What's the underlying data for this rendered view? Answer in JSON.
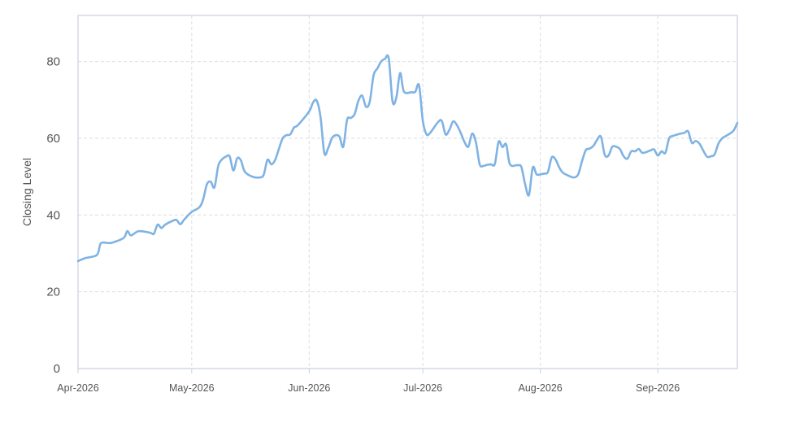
{
  "chart_data": {
    "type": "line",
    "title": "",
    "xlabel": "",
    "ylabel": "Closing Level",
    "ylim": [
      0,
      92
    ],
    "xlim": [
      "2026-04-01",
      "2026-09-22"
    ],
    "yticks": [
      0,
      20,
      40,
      60,
      80
    ],
    "xticks": [
      {
        "date": "2026-04-01",
        "label": "Apr-2026"
      },
      {
        "date": "2026-05-01",
        "label": "May-2026"
      },
      {
        "date": "2026-06-01",
        "label": "Jun-2026"
      },
      {
        "date": "2026-07-01",
        "label": "Jul-2026"
      },
      {
        "date": "2026-08-01",
        "label": "Aug-2026"
      },
      {
        "date": "2026-09-01",
        "label": "Sep-2026"
      }
    ],
    "grid": true,
    "color": "#7fb3e3",
    "series": [
      {
        "points": [
          [
            "2026-04-01",
            28.0
          ],
          [
            "2026-04-03",
            28.8
          ],
          [
            "2026-04-06",
            29.6
          ],
          [
            "2026-04-07",
            32.6
          ],
          [
            "2026-04-09",
            32.7
          ],
          [
            "2026-04-10",
            32.8
          ],
          [
            "2026-04-13",
            34.0
          ],
          [
            "2026-04-14",
            35.8
          ],
          [
            "2026-04-15",
            34.7
          ],
          [
            "2026-04-17",
            35.8
          ],
          [
            "2026-04-20",
            35.4
          ],
          [
            "2026-04-21",
            35.1
          ],
          [
            "2026-04-22",
            37.5
          ],
          [
            "2026-04-23",
            36.6
          ],
          [
            "2026-04-24",
            37.5
          ],
          [
            "2026-04-26",
            38.5
          ],
          [
            "2026-04-27",
            38.7
          ],
          [
            "2026-04-28",
            37.6
          ],
          [
            "2026-04-29",
            38.8
          ],
          [
            "2026-05-01",
            40.8
          ],
          [
            "2026-05-03",
            42.0
          ],
          [
            "2026-05-04",
            44.0
          ],
          [
            "2026-05-05",
            48.0
          ],
          [
            "2026-05-06",
            48.7
          ],
          [
            "2026-05-07",
            47.2
          ],
          [
            "2026-05-08",
            52.8
          ],
          [
            "2026-05-09",
            54.5
          ],
          [
            "2026-05-10",
            55.2
          ],
          [
            "2026-05-11",
            55.3
          ],
          [
            "2026-05-12",
            51.6
          ],
          [
            "2026-05-13",
            54.8
          ],
          [
            "2026-05-14",
            54.2
          ],
          [
            "2026-05-15",
            51.3
          ],
          [
            "2026-05-17",
            50.0
          ],
          [
            "2026-05-19",
            49.8
          ],
          [
            "2026-05-20",
            50.5
          ],
          [
            "2026-05-21",
            54.4
          ],
          [
            "2026-05-22",
            53.2
          ],
          [
            "2026-05-23",
            54.3
          ],
          [
            "2026-05-24",
            57.2
          ],
          [
            "2026-05-25",
            60.0
          ],
          [
            "2026-05-26",
            60.8
          ],
          [
            "2026-05-27",
            61.0
          ],
          [
            "2026-05-28",
            62.8
          ],
          [
            "2026-05-29",
            63.4
          ],
          [
            "2026-06-01",
            67.0
          ],
          [
            "2026-06-02",
            69.3
          ],
          [
            "2026-06-03",
            69.8
          ],
          [
            "2026-06-04",
            65.5
          ],
          [
            "2026-06-05",
            56.1
          ],
          [
            "2026-06-06",
            57.4
          ],
          [
            "2026-06-07",
            60.0
          ],
          [
            "2026-06-08",
            60.8
          ],
          [
            "2026-06-09",
            60.4
          ],
          [
            "2026-06-10",
            57.8
          ],
          [
            "2026-06-11",
            64.8
          ],
          [
            "2026-06-12",
            65.3
          ],
          [
            "2026-06-13",
            66.3
          ],
          [
            "2026-06-14",
            69.8
          ],
          [
            "2026-06-15",
            71.1
          ],
          [
            "2026-06-16",
            68.2
          ],
          [
            "2026-06-17",
            69.6
          ],
          [
            "2026-06-18",
            76.4
          ],
          [
            "2026-06-19",
            78.2
          ],
          [
            "2026-06-20",
            80.0
          ],
          [
            "2026-06-21",
            80.7
          ],
          [
            "2026-06-22",
            80.8
          ],
          [
            "2026-06-23",
            69.6
          ],
          [
            "2026-06-24",
            70.6
          ],
          [
            "2026-06-25",
            77.0
          ],
          [
            "2026-06-26",
            72.2
          ],
          [
            "2026-06-28",
            72.0
          ],
          [
            "2026-06-29",
            72.1
          ],
          [
            "2026-06-30",
            73.8
          ],
          [
            "2026-07-01",
            64.5
          ],
          [
            "2026-07-02",
            61.0
          ],
          [
            "2026-07-03",
            61.5
          ],
          [
            "2026-07-05",
            64.2
          ],
          [
            "2026-07-06",
            64.5
          ],
          [
            "2026-07-07",
            61.0
          ],
          [
            "2026-07-08",
            62.2
          ],
          [
            "2026-07-09",
            64.4
          ],
          [
            "2026-07-10",
            63.4
          ],
          [
            "2026-07-11",
            61.4
          ],
          [
            "2026-07-12",
            59.0
          ],
          [
            "2026-07-13",
            57.8
          ],
          [
            "2026-07-14",
            61.2
          ],
          [
            "2026-07-15",
            59.0
          ],
          [
            "2026-07-16",
            53.2
          ],
          [
            "2026-07-17",
            52.8
          ],
          [
            "2026-07-18",
            53.1
          ],
          [
            "2026-07-19",
            53.2
          ],
          [
            "2026-07-20",
            53.3
          ],
          [
            "2026-07-21",
            59.1
          ],
          [
            "2026-07-22",
            57.7
          ],
          [
            "2026-07-23",
            58.4
          ],
          [
            "2026-07-24",
            53.2
          ],
          [
            "2026-07-26",
            53.0
          ],
          [
            "2026-07-27",
            52.5
          ],
          [
            "2026-07-28",
            48.0
          ],
          [
            "2026-07-29",
            45.2
          ],
          [
            "2026-07-30",
            52.4
          ],
          [
            "2026-07-31",
            50.6
          ],
          [
            "2026-08-01",
            50.6
          ],
          [
            "2026-08-02",
            50.8
          ],
          [
            "2026-08-03",
            51.2
          ],
          [
            "2026-08-04",
            55.0
          ],
          [
            "2026-08-05",
            54.5
          ],
          [
            "2026-08-06",
            52.4
          ],
          [
            "2026-08-07",
            51.0
          ],
          [
            "2026-08-09",
            50.0
          ],
          [
            "2026-08-10",
            49.8
          ],
          [
            "2026-08-11",
            50.6
          ],
          [
            "2026-08-12",
            54.0
          ],
          [
            "2026-08-13",
            56.9
          ],
          [
            "2026-08-14",
            57.3
          ],
          [
            "2026-08-15",
            58.0
          ],
          [
            "2026-08-16",
            59.6
          ],
          [
            "2026-08-17",
            60.4
          ],
          [
            "2026-08-18",
            55.7
          ],
          [
            "2026-08-19",
            55.5
          ],
          [
            "2026-08-20",
            57.8
          ],
          [
            "2026-08-21",
            57.8
          ],
          [
            "2026-08-22",
            57.2
          ],
          [
            "2026-08-23",
            55.3
          ],
          [
            "2026-08-24",
            54.7
          ],
          [
            "2026-08-25",
            56.6
          ],
          [
            "2026-08-26",
            56.6
          ],
          [
            "2026-08-27",
            57.2
          ],
          [
            "2026-08-28",
            56.2
          ],
          [
            "2026-08-30",
            56.8
          ],
          [
            "2026-08-31",
            57.1
          ],
          [
            "2026-09-01",
            55.5
          ],
          [
            "2026-09-02",
            56.6
          ],
          [
            "2026-09-03",
            56.2
          ],
          [
            "2026-09-04",
            60.0
          ],
          [
            "2026-09-05",
            60.6
          ],
          [
            "2026-09-07",
            61.2
          ],
          [
            "2026-09-08",
            61.4
          ],
          [
            "2026-09-09",
            61.8
          ],
          [
            "2026-09-10",
            58.8
          ],
          [
            "2026-09-11",
            59.3
          ],
          [
            "2026-09-12",
            58.6
          ],
          [
            "2026-09-13",
            56.8
          ],
          [
            "2026-09-14",
            55.2
          ],
          [
            "2026-09-15",
            55.3
          ],
          [
            "2026-09-16",
            55.8
          ],
          [
            "2026-09-17",
            58.6
          ],
          [
            "2026-09-18",
            60.0
          ],
          [
            "2026-09-19",
            60.6
          ],
          [
            "2026-09-20",
            61.2
          ],
          [
            "2026-09-21",
            62.0
          ],
          [
            "2026-09-22",
            64.0
          ]
        ]
      }
    ]
  }
}
